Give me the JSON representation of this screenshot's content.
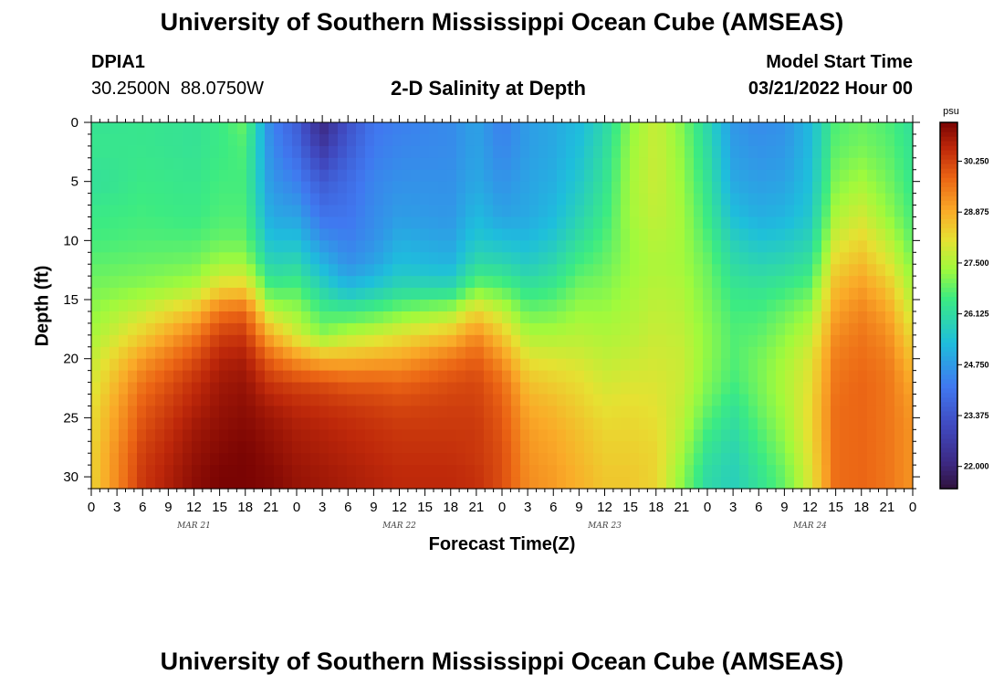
{
  "page": {
    "title": "University of Southern Mississippi Ocean Cube (AMSEAS)",
    "title_repeat": "University of Southern Mississippi Ocean Cube (AMSEAS)",
    "station_id": "DPIA1",
    "station_coords": "30.2500N  88.0750W",
    "subtitle": "2-D Salinity at Depth",
    "model_start_label": "Model Start Time",
    "model_start_value": "03/21/2022 Hour 00"
  },
  "chart_data": {
    "type": "heatmap",
    "title": "2-D Salinity at Depth",
    "xlabel": "Forecast Time(Z)",
    "ylabel": "Depth (ft)",
    "x_range_hours": [
      0,
      96
    ],
    "y_range_ft": [
      0,
      31
    ],
    "x_ticks": [
      "0",
      "3",
      "6",
      "9",
      "12",
      "15",
      "18",
      "21",
      "0",
      "3",
      "6",
      "9",
      "12",
      "15",
      "18",
      "21",
      "0",
      "3",
      "6",
      "9",
      "12",
      "15",
      "18",
      "21",
      "0",
      "3",
      "6",
      "9",
      "12",
      "15",
      "18",
      "21",
      "0"
    ],
    "y_ticks": [
      0,
      5,
      10,
      15,
      20,
      25,
      30
    ],
    "date_labels": [
      {
        "label": "MAR 21",
        "hour": 12
      },
      {
        "label": "MAR 22",
        "hour": 36
      },
      {
        "label": "MAR 23",
        "hour": 60
      },
      {
        "label": "MAR 24",
        "hour": 84
      }
    ],
    "colorbar": {
      "unit": "psu",
      "range": [
        21.4,
        31.3
      ],
      "ticks": [
        30.25,
        28.875,
        27.5,
        26.125,
        24.75,
        23.375,
        22.0
      ],
      "tick_labels": [
        "30.250",
        "28.875",
        "27.500",
        "26.125",
        "24.750",
        "23.375",
        "22.000"
      ]
    },
    "hours": [
      0,
      6,
      12,
      15,
      18,
      21,
      24,
      27,
      30,
      33,
      36,
      42,
      45,
      48,
      51,
      54,
      57,
      60,
      63,
      66,
      69,
      72,
      75,
      78,
      81,
      84,
      87,
      90,
      93,
      96
    ],
    "depths": [
      0,
      2,
      5,
      8,
      10,
      12,
      14,
      16,
      18,
      20,
      22,
      24,
      26,
      28,
      30
    ],
    "salinity": [
      [
        26.3,
        26.4,
        26.2,
        26.5,
        26.6,
        26.8,
        27.0,
        27.2,
        27.4,
        27.7,
        27.9,
        28.1,
        28.2,
        28.3,
        28.3
      ],
      [
        26.4,
        26.4,
        26.5,
        26.6,
        26.7,
        26.9,
        27.2,
        27.8,
        28.4,
        29.1,
        29.6,
        29.9,
        30.1,
        30.3,
        30.4
      ],
      [
        26.3,
        26.3,
        26.4,
        26.5,
        26.7,
        27.0,
        27.5,
        28.6,
        29.5,
        30.1,
        30.5,
        30.7,
        30.9,
        31.0,
        31.1
      ],
      [
        26.5,
        26.5,
        26.6,
        26.7,
        26.9,
        27.4,
        28.3,
        29.6,
        30.3,
        30.7,
        30.9,
        31.0,
        31.1,
        31.2,
        31.3
      ],
      [
        26.9,
        26.7,
        26.6,
        26.7,
        26.9,
        27.4,
        28.4,
        29.8,
        30.4,
        30.8,
        31.0,
        31.1,
        31.2,
        31.3,
        31.3
      ],
      [
        24.4,
        24.5,
        24.7,
        25.0,
        25.4,
        25.9,
        26.6,
        27.6,
        28.8,
        29.8,
        30.4,
        30.8,
        31.0,
        31.1,
        31.2
      ],
      [
        23.6,
        23.8,
        24.3,
        24.9,
        25.4,
        26.0,
        26.7,
        27.3,
        27.9,
        29.2,
        30.2,
        30.6,
        30.8,
        30.9,
        31.0
      ],
      [
        22.1,
        22.6,
        23.5,
        24.1,
        24.6,
        25.2,
        25.9,
        26.6,
        27.2,
        28.8,
        30.1,
        30.5,
        30.7,
        30.8,
        30.9
      ],
      [
        23.3,
        23.5,
        23.9,
        24.1,
        24.3,
        24.6,
        25.3,
        26.5,
        27.6,
        28.8,
        29.9,
        30.4,
        30.6,
        30.7,
        30.8
      ],
      [
        24.1,
        24.2,
        24.4,
        24.5,
        24.6,
        24.9,
        25.6,
        26.7,
        27.8,
        28.9,
        29.9,
        30.3,
        30.5,
        30.6,
        30.7
      ],
      [
        24.3,
        24.4,
        24.6,
        24.8,
        25.1,
        25.4,
        26.0,
        27.0,
        28.1,
        29.0,
        29.8,
        30.2,
        30.4,
        30.5,
        30.6
      ],
      [
        24.5,
        24.5,
        24.6,
        24.7,
        24.9,
        25.2,
        26.0,
        27.4,
        28.6,
        29.6,
        30.1,
        30.3,
        30.4,
        30.5,
        30.6
      ],
      [
        24.9,
        24.9,
        25.0,
        25.3,
        25.6,
        26.1,
        27.0,
        28.3,
        29.3,
        29.9,
        30.2,
        30.3,
        30.4,
        30.4,
        30.5
      ],
      [
        24.3,
        24.4,
        24.6,
        24.9,
        25.4,
        26.0,
        26.8,
        27.7,
        28.5,
        29.2,
        29.7,
        29.9,
        30.0,
        30.1,
        30.1
      ],
      [
        24.8,
        24.8,
        24.9,
        25.0,
        25.3,
        25.7,
        26.3,
        26.9,
        27.5,
        28.1,
        28.6,
        28.9,
        29.1,
        29.2,
        29.3
      ],
      [
        25.0,
        25.0,
        25.1,
        25.3,
        25.6,
        26.0,
        26.5,
        27.0,
        27.5,
        28.0,
        28.4,
        28.7,
        28.9,
        29.0,
        29.1
      ],
      [
        25.3,
        25.4,
        25.6,
        25.9,
        26.2,
        26.6,
        27.0,
        27.3,
        27.6,
        27.9,
        28.2,
        28.4,
        28.6,
        28.7,
        28.8
      ],
      [
        26.0,
        26.1,
        26.3,
        26.5,
        26.7,
        26.9,
        27.1,
        27.3,
        27.5,
        27.7,
        27.9,
        28.1,
        28.3,
        28.4,
        28.5
      ],
      [
        27.2,
        27.3,
        27.4,
        27.4,
        27.3,
        27.3,
        27.4,
        27.5,
        27.6,
        27.8,
        28.0,
        28.2,
        28.3,
        28.4,
        28.5
      ],
      [
        27.8,
        27.8,
        27.8,
        27.7,
        27.6,
        27.5,
        27.6,
        27.7,
        27.8,
        27.9,
        28.0,
        28.1,
        28.2,
        28.3,
        28.3
      ],
      [
        27.1,
        27.2,
        27.3,
        27.4,
        27.4,
        27.4,
        27.5,
        27.6,
        27.7,
        27.8,
        27.8,
        27.7,
        27.6,
        27.4,
        27.2
      ],
      [
        26.0,
        26.1,
        26.3,
        26.5,
        26.7,
        26.9,
        27.0,
        27.1,
        27.2,
        27.2,
        27.1,
        26.9,
        26.6,
        26.3,
        26.1
      ],
      [
        24.7,
        24.8,
        25.0,
        25.4,
        25.8,
        26.1,
        26.4,
        26.6,
        26.7,
        26.7,
        26.6,
        26.3,
        26.1,
        25.9,
        25.8
      ],
      [
        24.5,
        24.6,
        24.8,
        25.1,
        25.5,
        25.9,
        26.3,
        26.6,
        26.8,
        27.0,
        27.0,
        26.9,
        26.7,
        26.5,
        26.3
      ],
      [
        24.6,
        24.7,
        24.9,
        25.2,
        25.6,
        26.0,
        26.5,
        26.9,
        27.2,
        27.4,
        27.5,
        27.4,
        27.3,
        27.1,
        26.9
      ],
      [
        25.3,
        25.3,
        25.4,
        25.6,
        25.9,
        26.3,
        26.8,
        27.3,
        27.7,
        28.0,
        28.1,
        28.2,
        28.2,
        28.1,
        28.0
      ],
      [
        26.7,
        26.8,
        27.1,
        27.5,
        27.9,
        28.3,
        28.7,
        29.0,
        29.3,
        29.5,
        29.6,
        29.7,
        29.7,
        29.7,
        29.7
      ],
      [
        26.9,
        27.0,
        27.4,
        27.9,
        28.3,
        28.7,
        29.1,
        29.4,
        29.6,
        29.7,
        29.8,
        29.8,
        29.8,
        29.8,
        29.8
      ],
      [
        26.7,
        26.8,
        27.0,
        27.3,
        27.7,
        28.1,
        28.6,
        29.0,
        29.3,
        29.5,
        29.6,
        29.6,
        29.6,
        29.6,
        29.6
      ],
      [
        26.2,
        26.3,
        26.4,
        26.6,
        26.8,
        27.1,
        27.4,
        27.8,
        28.2,
        28.6,
        28.9,
        29.1,
        29.2,
        29.2,
        29.2
      ]
    ]
  }
}
